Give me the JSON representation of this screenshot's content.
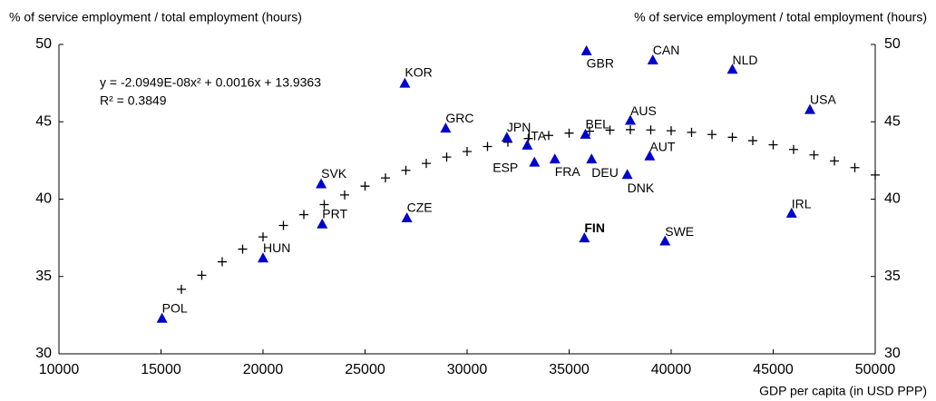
{
  "chart_data": {
    "type": "scatter",
    "ylabel": "% of service employment / total employment (hours)",
    "y2label": "% of service employment / total employment (hours)",
    "xlabel": "GDP per capita (in USD PPP)",
    "equation": "y = -2.0949E-08x² + 0.0016x + 13.9363",
    "r_squared": "R² = 0.3849",
    "xlim": [
      10000,
      50000
    ],
    "xticks": [
      10000,
      15000,
      20000,
      25000,
      30000,
      35000,
      40000,
      45000,
      50000
    ],
    "ylim": [
      30,
      50
    ],
    "yticks": [
      30,
      35,
      40,
      45,
      50
    ],
    "y2lim": [
      30,
      50
    ],
    "y2ticks": [
      30,
      35,
      40,
      45,
      50
    ],
    "color": "#0000cc",
    "series": [
      {
        "color": "#0000cc",
        "labels": [
          "POL",
          "HUN",
          "PRT",
          "SVK",
          "CZE",
          "KOR",
          "GRC",
          "JPN",
          "ITA",
          "ESP",
          "FRA",
          "BEL",
          "GBR",
          "FIN",
          "DEU",
          "DNK",
          "AUT",
          "AUS",
          "CAN",
          "SWE",
          "NLD",
          "USA",
          "IRL"
        ],
        "x": [
          15050,
          20000,
          22900,
          22850,
          27050,
          26950,
          28950,
          31950,
          32950,
          33300,
          34300,
          35800,
          35850,
          35750,
          36100,
          37850,
          38950,
          38000,
          39100,
          39700,
          43000,
          46800,
          45900
        ],
        "values": [
          32.3,
          36.2,
          38.4,
          41.0,
          38.8,
          47.5,
          44.6,
          44.0,
          43.5,
          42.4,
          42.6,
          44.2,
          49.6,
          37.5,
          42.6,
          41.6,
          42.8,
          45.1,
          49.0,
          37.3,
          48.4,
          45.8,
          39.1
        ]
      }
    ],
    "trend": {
      "color": "#000000",
      "x": [
        16000,
        17000,
        18000,
        19000,
        20000,
        21000,
        22000,
        23000,
        24000,
        25000,
        26000,
        27000,
        28000,
        29000,
        30000,
        31000,
        32000,
        33000,
        34000,
        35000,
        36000,
        37000,
        38000,
        39000,
        40000,
        41000,
        42000,
        43000,
        44000,
        45000,
        46000,
        47000,
        48000,
        49000,
        50000
      ],
      "values": [
        34.17,
        35.08,
        35.95,
        36.77,
        37.56,
        38.3,
        39.0,
        39.65,
        40.27,
        40.84,
        41.37,
        41.86,
        42.31,
        42.72,
        43.08,
        43.4,
        43.68,
        43.92,
        44.12,
        44.27,
        44.39,
        44.46,
        44.49,
        44.47,
        44.42,
        44.32,
        44.18,
        44.0,
        43.78,
        43.51,
        43.21,
        42.86,
        42.47,
        42.04,
        41.56
      ]
    }
  }
}
